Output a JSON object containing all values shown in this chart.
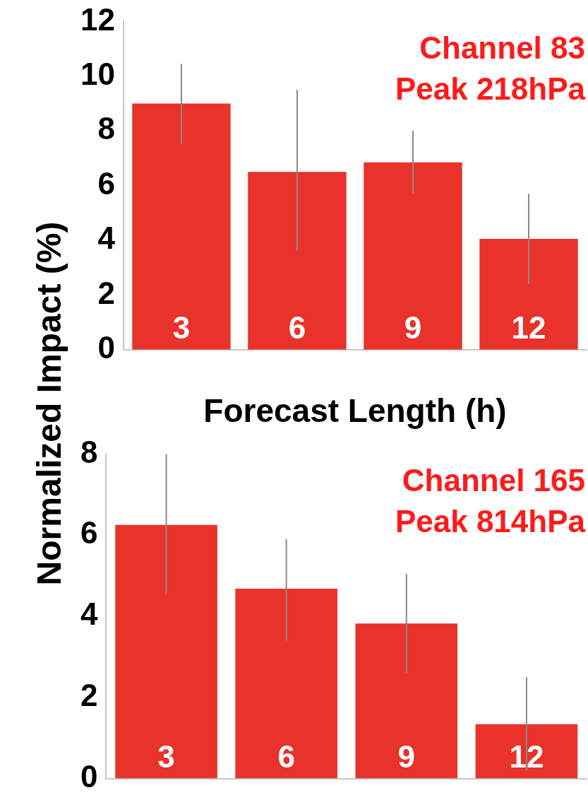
{
  "chart_data": [
    {
      "type": "bar",
      "categories": [
        "3",
        "6",
        "9",
        "12"
      ],
      "values": [
        9.0,
        6.5,
        6.85,
        4.05
      ],
      "color": "#e8322a",
      "errors": [
        [
          7.5,
          10.45
        ],
        [
          3.6,
          9.5
        ],
        [
          5.7,
          8.0
        ],
        [
          2.4,
          5.7
        ]
      ],
      "ylim": [
        0,
        12
      ],
      "yticks": [
        0,
        2,
        4,
        6,
        8,
        10,
        12
      ],
      "xlabel": "Forecast Length (h)",
      "ylabel": "Normalized Impact (%)",
      "annotations": [
        "Channel 83",
        "Peak 218hPa"
      ]
    },
    {
      "type": "bar",
      "categories": [
        "3",
        "6",
        "9",
        "12"
      ],
      "values": [
        6.25,
        4.68,
        3.82,
        1.34
      ],
      "color": "#e8322a",
      "errors": [
        [
          4.55,
          8.0
        ],
        [
          3.4,
          5.9
        ],
        [
          2.6,
          5.05
        ],
        [
          0.2,
          2.5
        ]
      ],
      "ylim": [
        0,
        8
      ],
      "yticks": [
        0,
        2,
        4,
        6,
        8
      ],
      "annotations": [
        "Channel 165",
        "Peak 814hPa"
      ]
    }
  ]
}
